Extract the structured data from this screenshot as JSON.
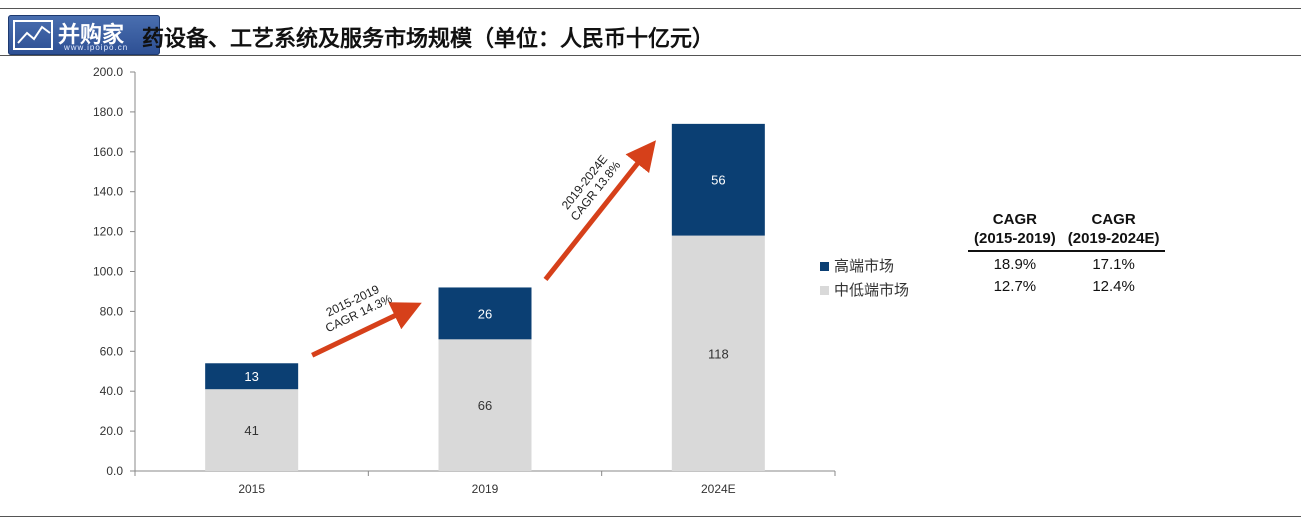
{
  "logo": {
    "text": "并购家",
    "sub": "www.ipoipo.cn"
  },
  "title": "药设备、工艺系统及服务市场规模（单位：人民币十亿元）",
  "chart_data": {
    "type": "bar",
    "stacked": true,
    "categories": [
      "2015",
      "2019",
      "2024E"
    ],
    "series": [
      {
        "name": "中低端市场",
        "values": [
          41,
          66,
          118
        ],
        "color": "#d9d9d9",
        "label_color": "#333333"
      },
      {
        "name": "高端市场",
        "values": [
          13,
          26,
          56
        ],
        "color": "#0b3f73",
        "label_color": "#ffffff"
      }
    ],
    "ylim": [
      0,
      200
    ],
    "yticks": [
      "0.0",
      "20.0",
      "40.0",
      "60.0",
      "80.0",
      "100.0",
      "120.0",
      "140.0",
      "160.0",
      "180.0",
      "200.0"
    ],
    "grid": false,
    "legend_position": "right",
    "annotations": [
      {
        "line1": "2015-2019",
        "line2": "CAGR 14.3%",
        "from": "2015",
        "to": "2019"
      },
      {
        "line1": "2019-2024E",
        "line2": "CAGR 13.8%",
        "from": "2019",
        "to": "2024E"
      }
    ],
    "arrow_color": "#d6401a"
  },
  "cagr_table": {
    "headers": [
      {
        "line1": "CAGR",
        "line2": "(2015-2019)"
      },
      {
        "line1": "CAGR",
        "line2": "(2019-2024E)"
      }
    ],
    "rows": [
      [
        "18.9%",
        "17.1%"
      ],
      [
        "12.7%",
        "12.4%"
      ]
    ]
  }
}
